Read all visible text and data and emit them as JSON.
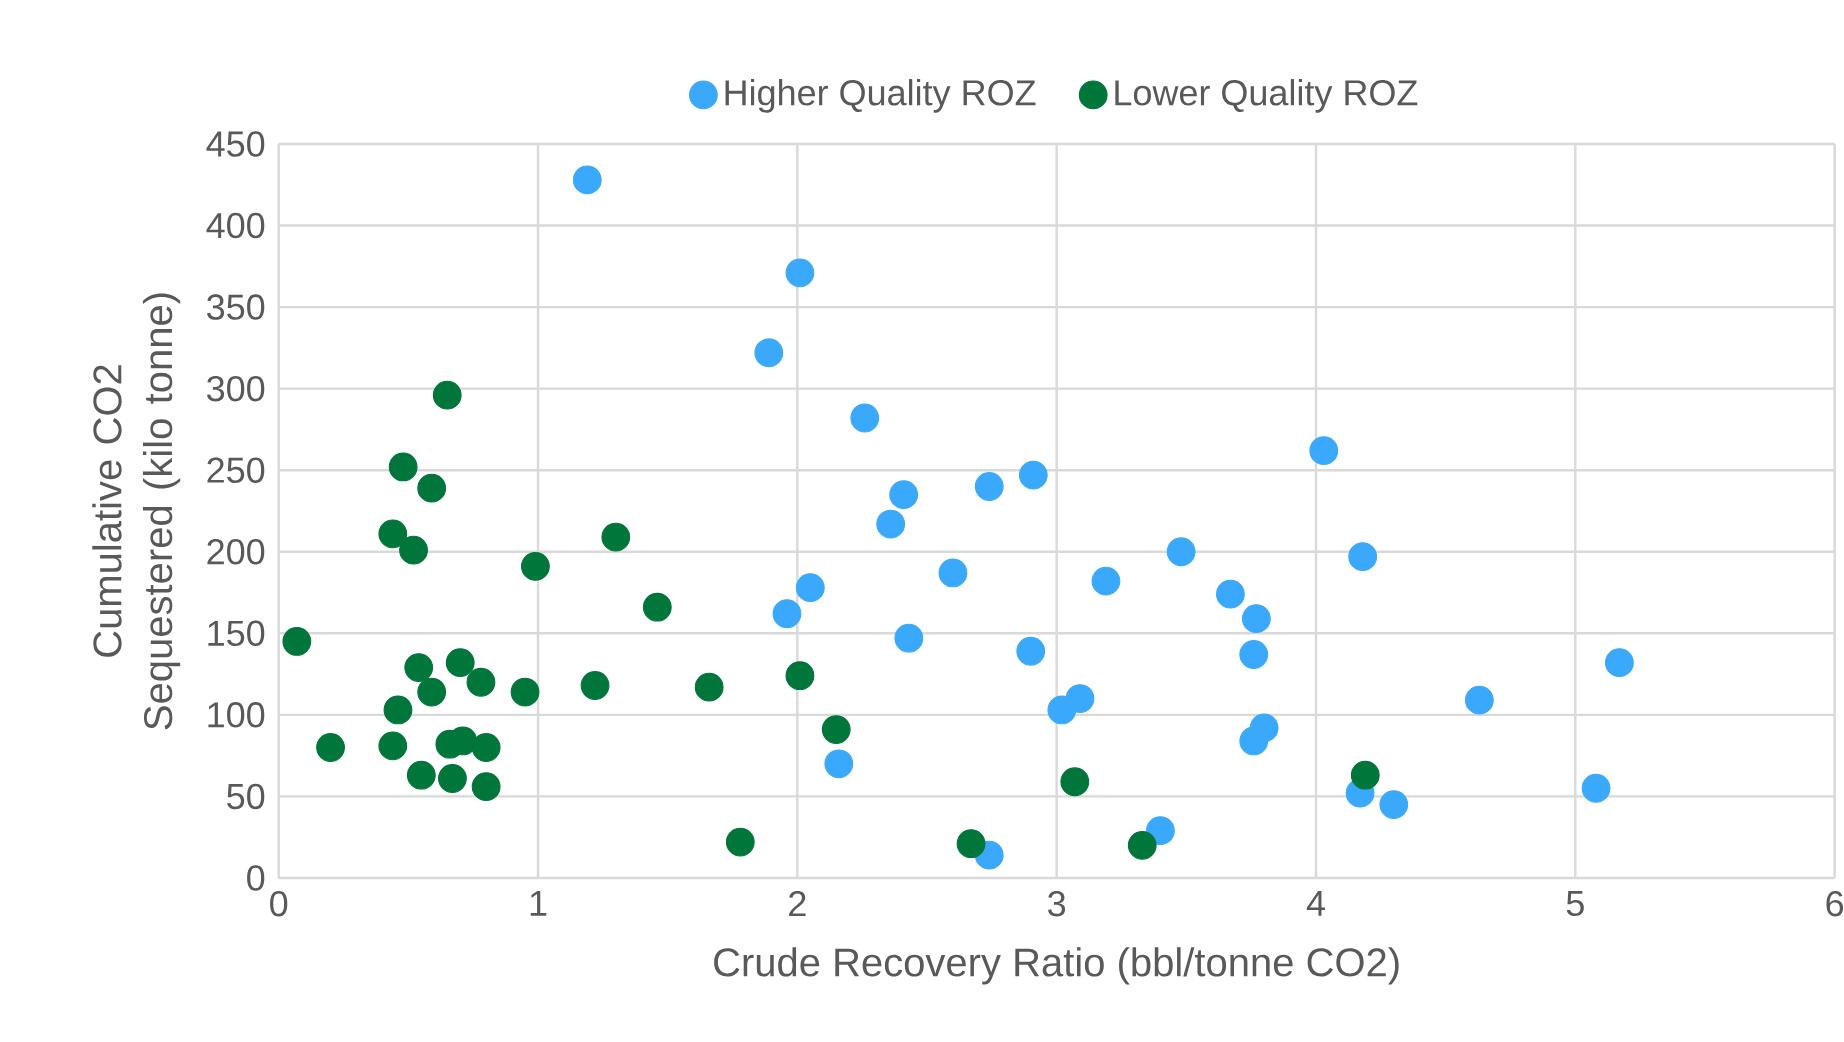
{
  "chart_data": {
    "type": "scatter",
    "xlabel": "Crude Recovery Ratio (bbl/tonne CO2)",
    "ylabel": "Cumulative CO2 Sequestered (kilo tonne)",
    "xlim": [
      0,
      6
    ],
    "xticks": [
      0,
      1,
      2,
      3,
      4,
      5,
      6
    ],
    "ylim": [
      0,
      450
    ],
    "yticks": [
      0,
      50,
      100,
      150,
      200,
      250,
      300,
      350,
      400,
      450
    ],
    "grid": true,
    "legend": "top",
    "marker": "circle",
    "series": [
      {
        "name": "Higher Quality ROZ",
        "color": "#3ba9fb",
        "x": [
          1.19,
          2.01,
          1.89,
          2.26,
          2.41,
          2.36,
          2.74,
          2.91,
          2.6,
          2.05,
          1.96,
          2.43,
          2.9,
          3.19,
          3.48,
          3.67,
          3.77,
          3.76,
          3.02,
          3.09,
          3.8,
          3.76,
          2.16,
          2.74,
          3.4,
          4.03,
          4.18,
          5.17,
          4.63,
          4.17,
          4.3,
          5.08
        ],
        "values": [
          428,
          371,
          322,
          282,
          235,
          217,
          240,
          247,
          187,
          178,
          162,
          147,
          139,
          182,
          200,
          174,
          159,
          137,
          103,
          110,
          92,
          84,
          70,
          14,
          29,
          262,
          197,
          132,
          109,
          52,
          45,
          55
        ]
      },
      {
        "name": "Lower Quality ROZ",
        "color": "#00763a",
        "x": [
          0.65,
          0.48,
          0.59,
          0.44,
          0.52,
          1.3,
          0.99,
          1.46,
          0.07,
          0.54,
          0.7,
          0.78,
          0.59,
          0.95,
          1.22,
          1.66,
          0.46,
          0.2,
          0.44,
          0.66,
          0.71,
          0.8,
          0.55,
          0.67,
          0.8,
          1.78,
          2.01,
          2.15,
          3.07,
          2.67,
          3.33,
          4.19
        ],
        "values": [
          296,
          252,
          239,
          211,
          201,
          209,
          191,
          166,
          145,
          129,
          132,
          120,
          114,
          114,
          118,
          117,
          103,
          80,
          81,
          82,
          84,
          80,
          63,
          61,
          56,
          22,
          124,
          91,
          59,
          21,
          20,
          63
        ]
      }
    ]
  }
}
